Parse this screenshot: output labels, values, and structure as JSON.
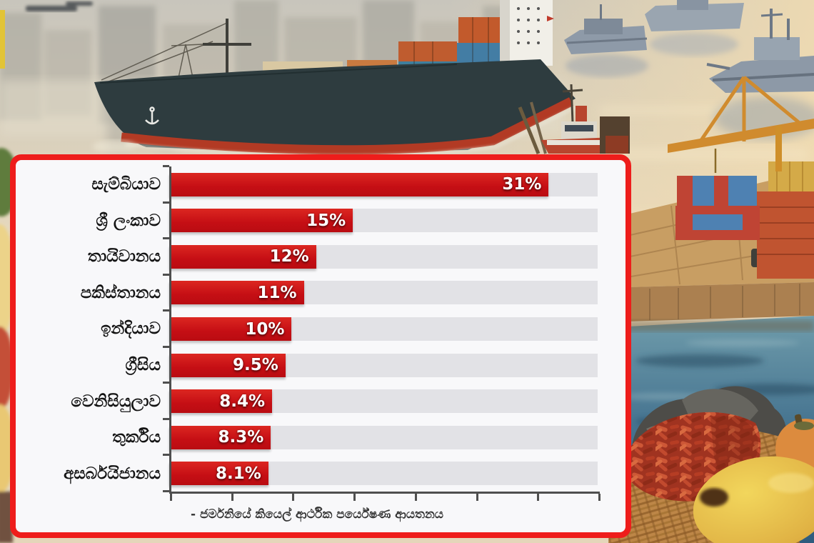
{
  "panel": {
    "border_color": "#ee1d1b",
    "background_color": "#f8f8fa"
  },
  "chart_data": {
    "type": "bar",
    "orientation": "horizontal",
    "title": "",
    "categories": [
      "සැම්බියාව",
      "ශ්‍රී ලංකාව",
      "තායිවානය",
      "පකිස්තානය",
      "ඉන්දියාව",
      "ග්‍රීසිය",
      "වෙනිසියුලාව",
      "තුර්කිය",
      "අසර්බයිජානය"
    ],
    "values": [
      31,
      15,
      12,
      11,
      10,
      9.5,
      8.4,
      8.3,
      8.1
    ],
    "value_labels": [
      "31%",
      "15%",
      "12%",
      "11%",
      "10%",
      "9.5%",
      "8.4%",
      "8.3%",
      "8.1%"
    ],
    "xlim": [
      0,
      35
    ],
    "x_tick_step": 5,
    "x_tick_count": 8,
    "grid": false,
    "legend": "none",
    "bar_color": "#c91016",
    "track_color": "#e2e2e6",
    "axis_color": "#4f4f4f",
    "source_caption": "- ජර්මනියේ කියෙල් ආර්ථික පර්යේෂණ ආයතනය"
  },
  "background_scene": {
    "subjects": [
      "container-ship",
      "warships",
      "harbor-cranes",
      "container-stacks",
      "pier",
      "rocks",
      "chili-basket",
      "mango",
      "persimmon"
    ],
    "sky_color": "#cdc9bf",
    "warm_water_color": "#ecd9b8",
    "deep_water_color": "#3c6b8c",
    "ship_hull_color": "#2e3c3f",
    "ship_stripe_color": "#b23a24"
  }
}
